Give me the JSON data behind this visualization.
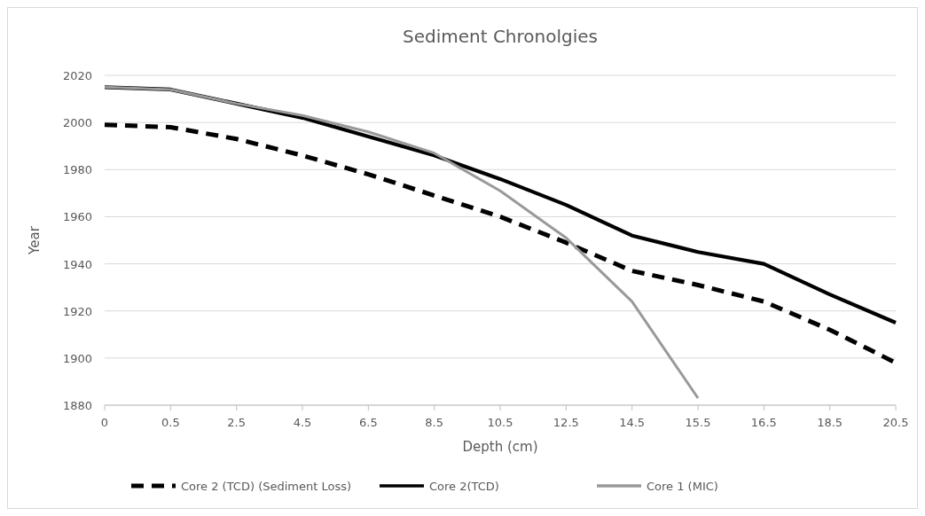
{
  "chart_data": {
    "type": "line",
    "title": "Sediment Chronolgies",
    "xlabel": "Depth (cm)",
    "ylabel": "Year",
    "categories": [
      "0",
      "0.5",
      "2.5",
      "4.5",
      "6.5",
      "8.5",
      "10.5",
      "12.5",
      "14.5",
      "15.5",
      "16.5",
      "18.5",
      "20.5"
    ],
    "ylim": [
      1880,
      2020
    ],
    "yticks": [
      1880,
      1900,
      1920,
      1940,
      1960,
      1980,
      2000,
      2020
    ],
    "grid": "y",
    "legend": "bottom",
    "marker": "none",
    "series": [
      {
        "name": "Core 2 (TCD) (Sediment Loss)",
        "color": "#000000",
        "line_style": "dashed",
        "values": [
          1999,
          1998,
          1993,
          1986,
          1978,
          1969,
          1960,
          1949,
          1937,
          1931,
          1924,
          1912,
          1898
        ]
      },
      {
        "name": "Core 2(TCD)",
        "color": "#000000",
        "line_style": "solid",
        "values": [
          2015,
          2014,
          2008,
          2002,
          1994,
          1986,
          1976,
          1965,
          1952,
          1945,
          1940,
          1927,
          1915
        ]
      },
      {
        "name": "Core 1 (MIC)",
        "color": "#999999",
        "line_style": "solid",
        "values": [
          2015,
          2014,
          2008,
          2003,
          1996,
          1987,
          1971,
          1951,
          1924,
          1883,
          null,
          null,
          null
        ]
      }
    ]
  }
}
